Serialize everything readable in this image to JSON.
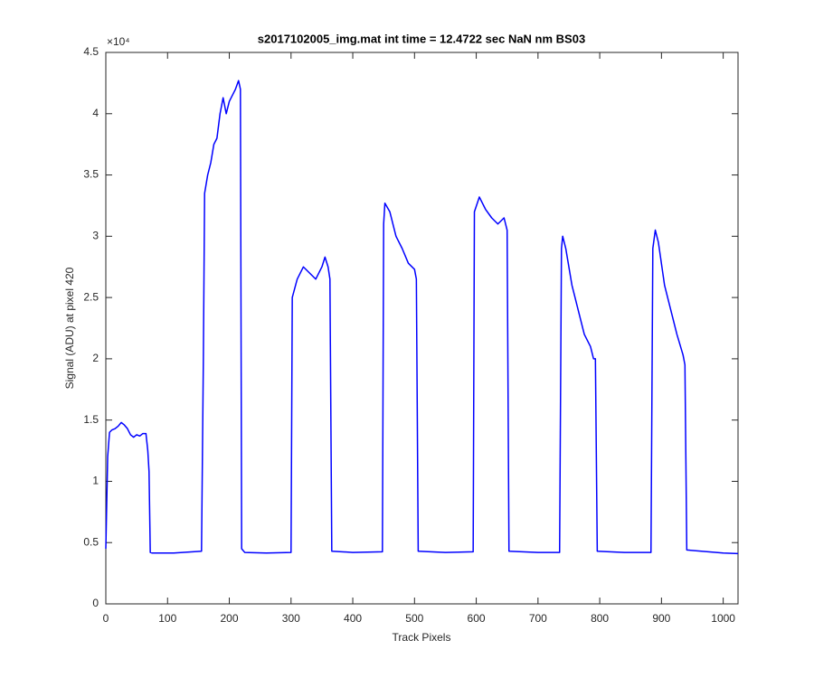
{
  "chart_data": {
    "type": "line",
    "title": "s2017102005_img.mat int time = 12.4722 sec  NaN nm BS03",
    "x_label": "Track Pixels",
    "y_label": "Signal (ADU) at pixel 420",
    "y_multiplier": "×10⁴",
    "xlim": [
      0,
      1024
    ],
    "xticks": [
      0,
      100,
      200,
      300,
      400,
      500,
      600,
      700,
      800,
      900,
      1000
    ],
    "ylim": [
      0,
      45000
    ],
    "yticks": [
      0,
      {
        "value": 5000,
        "label": "0.5"
      },
      {
        "value": 10000,
        "label": "1"
      },
      {
        "value": 15000,
        "label": "1.5"
      },
      {
        "value": 20000,
        "label": "2"
      },
      {
        "value": 25000,
        "label": "2.5"
      },
      {
        "value": 30000,
        "label": "3"
      },
      {
        "value": 35000,
        "label": "3.5"
      },
      {
        "value": 40000,
        "label": "4"
      },
      {
        "value": 45000,
        "label": "4.5"
      }
    ],
    "series": [
      {
        "color": "#0000ff",
        "x": [
          0,
          3,
          6,
          10,
          15,
          20,
          25,
          30,
          35,
          40,
          45,
          50,
          55,
          60,
          65,
          68,
          70,
          72,
          75,
          110,
          155,
          158,
          160,
          165,
          170,
          175,
          180,
          185,
          190,
          195,
          200,
          205,
          210,
          215,
          218,
          220,
          225,
          260,
          300,
          302,
          310,
          320,
          330,
          340,
          350,
          355,
          360,
          363,
          366,
          400,
          448,
          450,
          452,
          460,
          470,
          480,
          490,
          500,
          503,
          506,
          550,
          595,
          597,
          605,
          615,
          625,
          635,
          645,
          650,
          653,
          700,
          735,
          738,
          740,
          745,
          755,
          765,
          775,
          785,
          790,
          793,
          796,
          840,
          883,
          886,
          890,
          895,
          905,
          915,
          925,
          935,
          938,
          941,
          1000,
          1024
        ],
        "values": [
          4500,
          12000,
          14000,
          14200,
          14300,
          14500,
          14800,
          14600,
          14300,
          13800,
          13600,
          13800,
          13700,
          13900,
          13900,
          12500,
          10800,
          4200,
          4150,
          4150,
          4300,
          20000,
          33500,
          35000,
          36000,
          37500,
          38000,
          40000,
          41300,
          40000,
          41000,
          41500,
          42000,
          42700,
          42000,
          4500,
          4200,
          4150,
          4200,
          25000,
          26500,
          27500,
          27000,
          26500,
          27500,
          28300,
          27500,
          26500,
          4300,
          4200,
          4250,
          31000,
          32700,
          32000,
          30000,
          29000,
          27800,
          27300,
          26500,
          4300,
          4200,
          4250,
          32000,
          33200,
          32200,
          31500,
          31000,
          31500,
          30500,
          4300,
          4200,
          4200,
          29000,
          30000,
          29000,
          26000,
          24000,
          22000,
          21000,
          20000,
          20000,
          4300,
          4200,
          4200,
          29000,
          30500,
          29500,
          26000,
          24000,
          22000,
          20300,
          19500,
          4400,
          4150,
          4100
        ]
      }
    ]
  }
}
